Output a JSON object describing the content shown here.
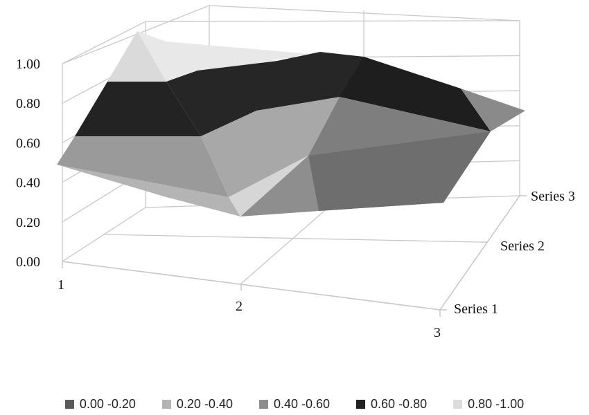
{
  "chart_data": {
    "type": "3d-surface",
    "title": "",
    "categories": [
      "1",
      "2",
      "3"
    ],
    "series": [
      {
        "name": "Series 1",
        "values": [
          0.5,
          0.2,
          0.45
        ]
      },
      {
        "name": "Series 2",
        "values": [
          0.7,
          0.4,
          0.6
        ]
      },
      {
        "name": "Series 3",
        "values": [
          1.0,
          0.88,
          0.8
        ]
      }
    ],
    "zlim": [
      0,
      1.0
    ],
    "z_ticks": [
      "0.00",
      "0.20",
      "0.40",
      "0.60",
      "0.80",
      "1.00"
    ],
    "legend": {
      "position": "bottom",
      "entries": [
        {
          "label": "0.00 -0.20",
          "color": "#5a5a5a"
        },
        {
          "label": "0.20 -0.40",
          "color": "#b3b3b3"
        },
        {
          "label": "0.40 -0.60",
          "color": "#8c8c8c"
        },
        {
          "label": "0.60 -0.80",
          "color": "#222222"
        },
        {
          "label": "0.80 -1.00",
          "color": "#dcdcdc"
        }
      ]
    },
    "grid": true
  }
}
